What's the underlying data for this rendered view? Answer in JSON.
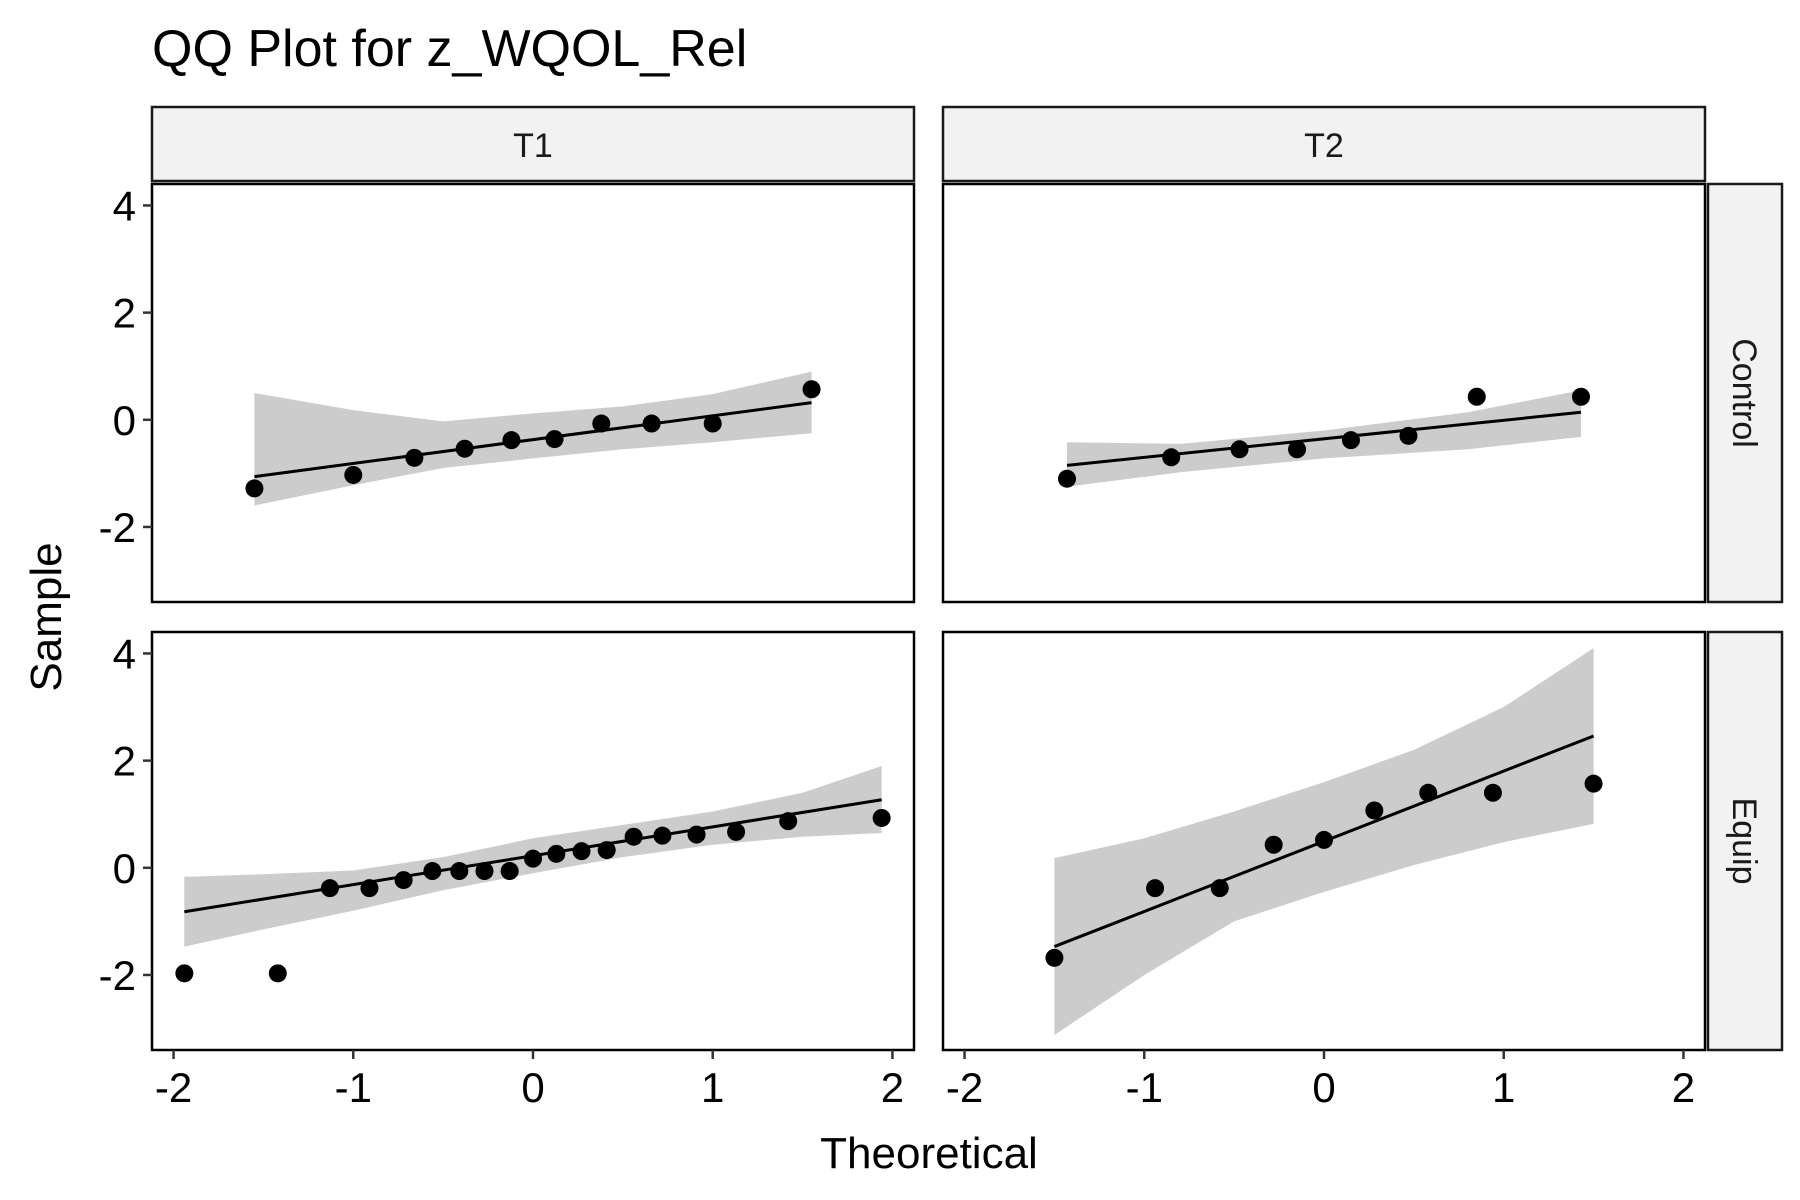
{
  "chart_data": {
    "type": "scatter",
    "title": "QQ Plot for z_WQOL_Rel",
    "xlabel": "Theoretical",
    "ylabel": "Sample",
    "xlim": [
      -2.12,
      2.12
    ],
    "ylim": [
      -3.4,
      4.4
    ],
    "x_ticks": [
      -2,
      -1,
      0,
      1,
      2
    ],
    "y_ticks": [
      -2,
      0,
      2,
      4
    ],
    "col_labels": [
      "T1",
      "T2"
    ],
    "row_labels": [
      "Control",
      "Equip"
    ],
    "grid": false,
    "colors": {
      "points": "#000000",
      "band": "#cccccc",
      "line": "#000000",
      "strip": "#f2f2f2"
    },
    "panels": [
      {
        "col": "T1",
        "row": "Control",
        "points": [
          [
            -1.55,
            -1.28
          ],
          [
            -1.0,
            -1.03
          ],
          [
            -0.66,
            -0.71
          ],
          [
            -0.38,
            -0.54
          ],
          [
            -0.12,
            -0.38
          ],
          [
            0.12,
            -0.36
          ],
          [
            0.38,
            -0.07
          ],
          [
            0.66,
            -0.07
          ],
          [
            1.0,
            -0.07
          ],
          [
            1.55,
            0.57
          ]
        ],
        "line": [
          [
            -1.55,
            -1.06
          ],
          [
            1.55,
            0.32
          ]
        ],
        "band_upper": [
          [
            -1.55,
            0.5
          ],
          [
            -1.0,
            0.18
          ],
          [
            -0.5,
            -0.03
          ],
          [
            0.0,
            0.12
          ],
          [
            0.5,
            0.25
          ],
          [
            1.0,
            0.48
          ],
          [
            1.55,
            0.9
          ]
        ],
        "band_lower": [
          [
            -1.55,
            -1.6
          ],
          [
            -1.0,
            -1.22
          ],
          [
            -0.5,
            -0.9
          ],
          [
            0.0,
            -0.72
          ],
          [
            0.5,
            -0.55
          ],
          [
            1.0,
            -0.42
          ],
          [
            1.55,
            -0.25
          ]
        ]
      },
      {
        "col": "T2",
        "row": "Control",
        "points": [
          [
            -1.43,
            -1.1
          ],
          [
            -0.85,
            -0.7
          ],
          [
            -0.47,
            -0.55
          ],
          [
            -0.15,
            -0.55
          ],
          [
            0.15,
            -0.38
          ],
          [
            0.47,
            -0.3
          ],
          [
            0.85,
            0.43
          ],
          [
            1.43,
            0.43
          ]
        ],
        "line": [
          [
            -1.43,
            -0.85
          ],
          [
            1.43,
            0.14
          ]
        ],
        "band_upper": [
          [
            -1.43,
            -0.42
          ],
          [
            -0.8,
            -0.45
          ],
          [
            0.0,
            -0.2
          ],
          [
            0.8,
            0.14
          ],
          [
            1.43,
            0.55
          ]
        ],
        "band_lower": [
          [
            -1.43,
            -1.25
          ],
          [
            -0.8,
            -0.98
          ],
          [
            0.0,
            -0.72
          ],
          [
            0.8,
            -0.55
          ],
          [
            1.43,
            -0.32
          ]
        ]
      },
      {
        "col": "T1",
        "row": "Equip",
        "points": [
          [
            -1.94,
            -1.97
          ],
          [
            -1.42,
            -1.97
          ],
          [
            -1.13,
            -0.38
          ],
          [
            -0.91,
            -0.38
          ],
          [
            -0.72,
            -0.23
          ],
          [
            -0.56,
            -0.06
          ],
          [
            -0.41,
            -0.06
          ],
          [
            -0.27,
            -0.06
          ],
          [
            -0.13,
            -0.06
          ],
          [
            0.0,
            0.17
          ],
          [
            0.13,
            0.26
          ],
          [
            0.27,
            0.31
          ],
          [
            0.41,
            0.33
          ],
          [
            0.56,
            0.58
          ],
          [
            0.72,
            0.6
          ],
          [
            0.91,
            0.62
          ],
          [
            1.13,
            0.67
          ],
          [
            1.42,
            0.87
          ],
          [
            1.94,
            0.93
          ]
        ],
        "line": [
          [
            -1.94,
            -0.82
          ],
          [
            1.94,
            1.27
          ]
        ],
        "band_upper": [
          [
            -1.94,
            -0.17
          ],
          [
            -1.5,
            -0.12
          ],
          [
            -1.0,
            -0.05
          ],
          [
            -0.5,
            0.2
          ],
          [
            0.0,
            0.55
          ],
          [
            0.5,
            0.8
          ],
          [
            1.0,
            1.05
          ],
          [
            1.5,
            1.4
          ],
          [
            1.94,
            1.9
          ]
        ],
        "band_lower": [
          [
            -1.94,
            -1.47
          ],
          [
            -1.5,
            -1.15
          ],
          [
            -1.0,
            -0.8
          ],
          [
            -0.5,
            -0.42
          ],
          [
            0.0,
            -0.1
          ],
          [
            0.5,
            0.2
          ],
          [
            1.0,
            0.43
          ],
          [
            1.5,
            0.58
          ],
          [
            1.94,
            0.65
          ]
        ]
      },
      {
        "col": "T2",
        "row": "Equip",
        "points": [
          [
            -1.5,
            -1.68
          ],
          [
            -0.94,
            -0.38
          ],
          [
            -0.58,
            -0.38
          ],
          [
            -0.28,
            0.43
          ],
          [
            0.0,
            0.52
          ],
          [
            0.28,
            1.07
          ],
          [
            0.58,
            1.4
          ],
          [
            0.94,
            1.4
          ],
          [
            1.5,
            1.57
          ]
        ],
        "line": [
          [
            -1.5,
            -1.47
          ],
          [
            1.5,
            2.46
          ]
        ],
        "band_upper": [
          [
            -1.5,
            0.18
          ],
          [
            -1.0,
            0.55
          ],
          [
            -0.5,
            1.05
          ],
          [
            0.0,
            1.6
          ],
          [
            0.5,
            2.2
          ],
          [
            1.0,
            3.0
          ],
          [
            1.5,
            4.1
          ]
        ],
        "band_lower": [
          [
            -1.5,
            -3.12
          ],
          [
            -1.0,
            -2.0
          ],
          [
            -0.5,
            -1.0
          ],
          [
            0.0,
            -0.45
          ],
          [
            0.5,
            0.05
          ],
          [
            1.0,
            0.48
          ],
          [
            1.5,
            0.82
          ]
        ]
      }
    ]
  }
}
